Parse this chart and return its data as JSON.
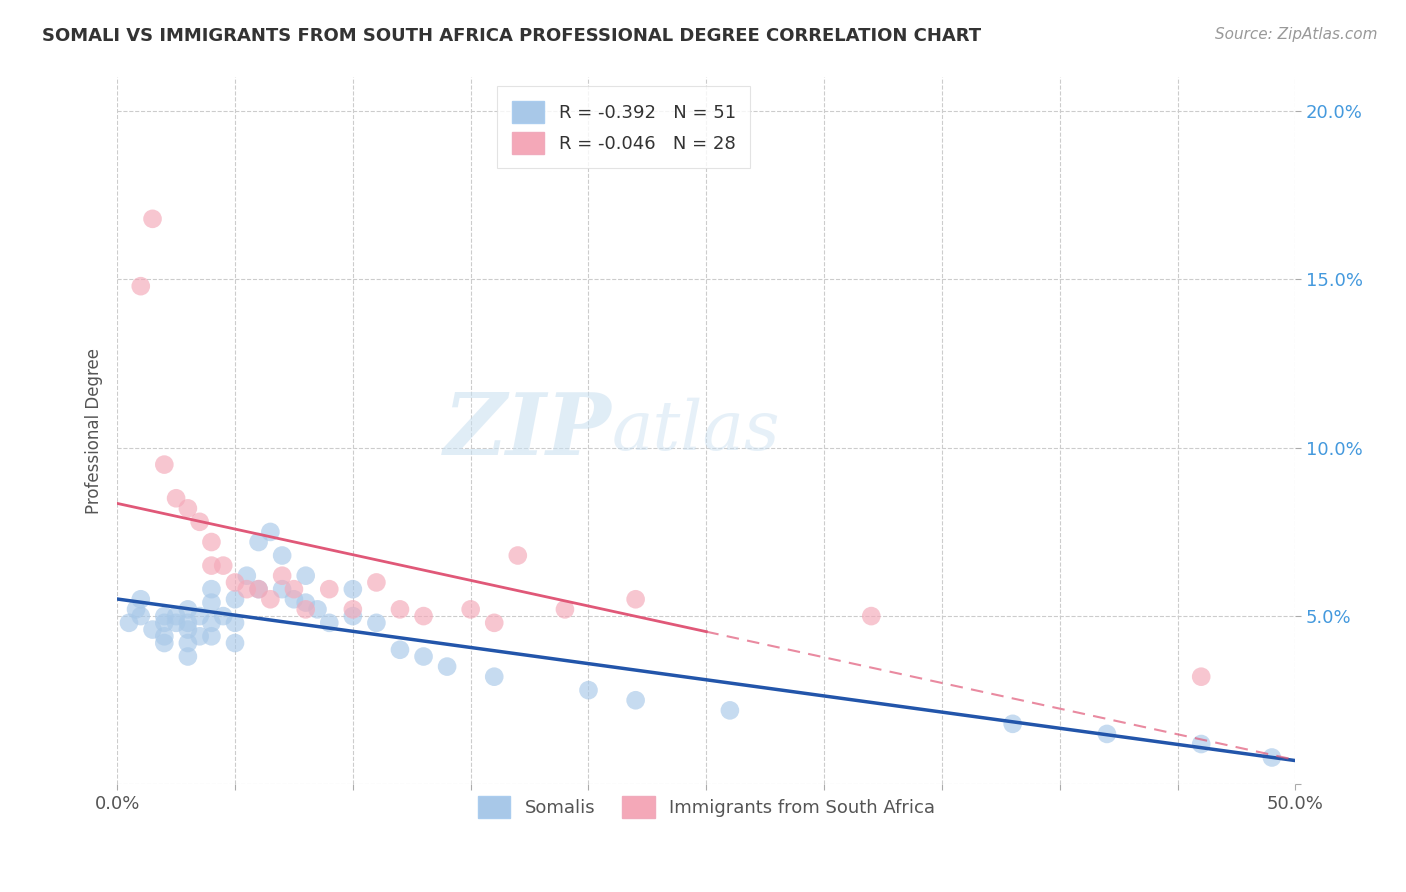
{
  "title": "SOMALI VS IMMIGRANTS FROM SOUTH AFRICA PROFESSIONAL DEGREE CORRELATION CHART",
  "source_text": "Source: ZipAtlas.com",
  "ylabel_label": "Professional Degree",
  "xlim": [
    0.0,
    0.5
  ],
  "ylim": [
    0.0,
    0.21
  ],
  "x_ticks": [
    0.0,
    0.05,
    0.1,
    0.15,
    0.2,
    0.25,
    0.3,
    0.35,
    0.4,
    0.45,
    0.5
  ],
  "x_tick_labels": [
    "0.0%",
    "",
    "",
    "",
    "",
    "",
    "",
    "",
    "",
    "",
    "50.0%"
  ],
  "y_ticks": [
    0.0,
    0.05,
    0.1,
    0.15,
    0.2
  ],
  "y_tick_labels": [
    "",
    "5.0%",
    "10.0%",
    "15.0%",
    "20.0%"
  ],
  "R_somali": -0.392,
  "N_somali": 51,
  "R_south_africa": -0.046,
  "N_south_africa": 28,
  "somali_color": "#a8c8e8",
  "south_africa_color": "#f4a8b8",
  "trend_somali_color": "#2255aa",
  "trend_south_africa_color": "#e05878",
  "watermark_zip": "ZIP",
  "watermark_atlas": "atlas",
  "legend_label_1": "Somalis",
  "legend_label_2": "Immigrants from South Africa",
  "somali_scatter_x": [
    0.005,
    0.008,
    0.01,
    0.01,
    0.015,
    0.02,
    0.02,
    0.02,
    0.02,
    0.025,
    0.025,
    0.03,
    0.03,
    0.03,
    0.03,
    0.03,
    0.035,
    0.035,
    0.04,
    0.04,
    0.04,
    0.04,
    0.045,
    0.05,
    0.05,
    0.05,
    0.055,
    0.06,
    0.06,
    0.065,
    0.07,
    0.07,
    0.075,
    0.08,
    0.08,
    0.085,
    0.09,
    0.1,
    0.1,
    0.11,
    0.12,
    0.13,
    0.14,
    0.16,
    0.2,
    0.22,
    0.26,
    0.38,
    0.42,
    0.46,
    0.49
  ],
  "somali_scatter_y": [
    0.048,
    0.052,
    0.05,
    0.055,
    0.046,
    0.05,
    0.048,
    0.044,
    0.042,
    0.05,
    0.048,
    0.052,
    0.048,
    0.046,
    0.042,
    0.038,
    0.05,
    0.044,
    0.058,
    0.054,
    0.048,
    0.044,
    0.05,
    0.055,
    0.048,
    0.042,
    0.062,
    0.072,
    0.058,
    0.075,
    0.068,
    0.058,
    0.055,
    0.062,
    0.054,
    0.052,
    0.048,
    0.058,
    0.05,
    0.048,
    0.04,
    0.038,
    0.035,
    0.032,
    0.028,
    0.025,
    0.022,
    0.018,
    0.015,
    0.012,
    0.008
  ],
  "sa_scatter_x": [
    0.01,
    0.015,
    0.02,
    0.025,
    0.03,
    0.035,
    0.04,
    0.04,
    0.045,
    0.05,
    0.055,
    0.06,
    0.065,
    0.07,
    0.075,
    0.08,
    0.09,
    0.1,
    0.11,
    0.12,
    0.13,
    0.15,
    0.16,
    0.17,
    0.19,
    0.22,
    0.32,
    0.46
  ],
  "sa_scatter_y": [
    0.148,
    0.168,
    0.095,
    0.085,
    0.082,
    0.078,
    0.072,
    0.065,
    0.065,
    0.06,
    0.058,
    0.058,
    0.055,
    0.062,
    0.058,
    0.052,
    0.058,
    0.052,
    0.06,
    0.052,
    0.05,
    0.052,
    0.048,
    0.068,
    0.052,
    0.055,
    0.05,
    0.032
  ],
  "grid_color": "#cccccc",
  "tick_color_y": "#4499dd",
  "tick_color_x": "#555555"
}
